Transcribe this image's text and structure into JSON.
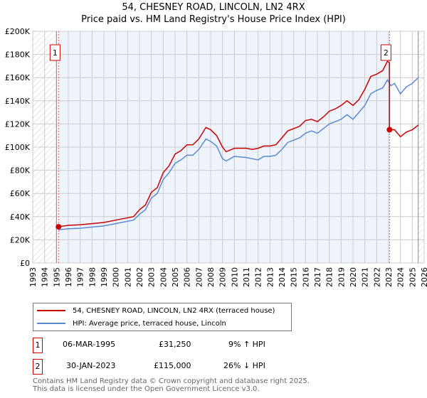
{
  "title": "54, CHESNEY ROAD, LINCOLN, LN2 4RX",
  "subtitle": "Price paid vs. HM Land Registry's House Price Index (HPI)",
  "chart_data": {
    "type": "line",
    "title": "54, CHESNEY ROAD, LINCOLN, LN2 4RX",
    "subtitle": "Price paid vs. HM Land Registry's House Price Index (HPI)",
    "xlim": [
      1993,
      2026
    ],
    "ylim": [
      0,
      200000
    ],
    "xticks": [
      "1993",
      "1994",
      "1995",
      "1996",
      "1997",
      "1998",
      "1999",
      "2000",
      "2001",
      "2002",
      "2003",
      "2004",
      "2005",
      "2006",
      "2007",
      "2008",
      "2009",
      "2010",
      "2011",
      "2012",
      "2013",
      "2014",
      "2015",
      "2016",
      "2017",
      "2018",
      "2019",
      "2020",
      "2021",
      "2022",
      "2023",
      "2024",
      "2025",
      "2026"
    ],
    "yticks": [
      "£0",
      "£20K",
      "£40K",
      "£60K",
      "£80K",
      "£100K",
      "£120K",
      "£140K",
      "£160K",
      "£180K",
      "£200K"
    ],
    "grid": true,
    "series": [
      {
        "name": "54, CHESNEY ROAD, LINCOLN, LN2 4RX (terraced house)",
        "color": "#cc0000",
        "x": [
          1995.18,
          1996,
          1997,
          1998,
          1999,
          2000,
          2001,
          2001.5,
          2002,
          2002.5,
          2003,
          2003.5,
          2004,
          2004.5,
          2005,
          2005.5,
          2006,
          2006.5,
          2007,
          2007.6,
          2008,
          2008.5,
          2009,
          2009.3,
          2010,
          2011,
          2011.5,
          2012,
          2012.5,
          2013,
          2013.5,
          2014,
          2014.5,
          2015,
          2015.5,
          2016,
          2016.5,
          2017,
          2017.5,
          2018,
          2018.5,
          2019,
          2019.5,
          2020,
          2020.5,
          2021,
          2021.5,
          2022,
          2022.5,
          2022.9,
          2023.08,
          2023.08,
          2023.5,
          2024,
          2024.5,
          2025,
          2025.5
        ],
        "y": [
          31250,
          32500,
          33000,
          34000,
          35000,
          37000,
          39000,
          40000,
          46000,
          50000,
          61000,
          65000,
          78000,
          84000,
          94000,
          97000,
          102000,
          102000,
          107000,
          117000,
          115000,
          110000,
          100000,
          96000,
          99000,
          99000,
          98000,
          99000,
          101000,
          101000,
          102000,
          108000,
          114000,
          116000,
          118000,
          123000,
          124000,
          122000,
          126000,
          131000,
          133000,
          136000,
          140000,
          136000,
          141000,
          150000,
          161000,
          163000,
          166000,
          174000,
          173000,
          115000,
          115000,
          109000,
          113000,
          115000,
          119000
        ]
      },
      {
        "name": "HPI: Average price, terraced house, Lincoln",
        "color": "#5b8bd0",
        "x": [
          1995.18,
          1996,
          1997,
          1998,
          1999,
          2000,
          2001,
          2001.5,
          2002,
          2002.5,
          2003,
          2003.5,
          2004,
          2004.5,
          2005,
          2005.5,
          2006,
          2006.5,
          2007,
          2007.6,
          2008,
          2008.5,
          2009,
          2009.3,
          2010,
          2011,
          2011.5,
          2012,
          2012.5,
          2013,
          2013.5,
          2014,
          2014.5,
          2015,
          2015.5,
          2016,
          2016.5,
          2017,
          2017.5,
          2018,
          2018.5,
          2019,
          2019.5,
          2020,
          2020.5,
          2021,
          2021.5,
          2022,
          2022.5,
          2022.9,
          2023.2,
          2023.5,
          2024,
          2024.5,
          2025,
          2025.5
        ],
        "y": [
          28700,
          29500,
          30000,
          31000,
          32000,
          34000,
          36000,
          37000,
          42000,
          46000,
          56000,
          60000,
          72000,
          78000,
          86000,
          89000,
          93000,
          93000,
          98000,
          107000,
          105000,
          101000,
          90000,
          88000,
          92000,
          91000,
          90000,
          89000,
          92000,
          92000,
          93000,
          98000,
          104000,
          106000,
          108000,
          112000,
          114000,
          112000,
          116000,
          120000,
          122000,
          124000,
          128000,
          124000,
          130000,
          136000,
          146000,
          149000,
          151000,
          158000,
          153000,
          155000,
          146000,
          152000,
          155000,
          160000
        ]
      }
    ],
    "annotations": [
      {
        "label": "1",
        "x": 1995.18,
        "y": 31250
      },
      {
        "label": "2",
        "x": 2023.08,
        "y": 115000
      }
    ],
    "legend_position": "bottom"
  },
  "legend": {
    "property": "54, CHESNEY ROAD, LINCOLN, LN2 4RX (terraced house)",
    "hpi": "HPI: Average price, terraced house, Lincoln"
  },
  "sales": [
    {
      "num": "1",
      "date": "06-MAR-1995",
      "price": "£31,250",
      "hpi": "9% ↑ HPI"
    },
    {
      "num": "2",
      "date": "30-JAN-2023",
      "price": "£115,000",
      "hpi": "26% ↓ HPI"
    }
  ],
  "footer": {
    "line1": "Contains HM Land Registry data © Crown copyright and database right 2025.",
    "line2": "This data is licensed under the Open Government Licence v3.0."
  }
}
